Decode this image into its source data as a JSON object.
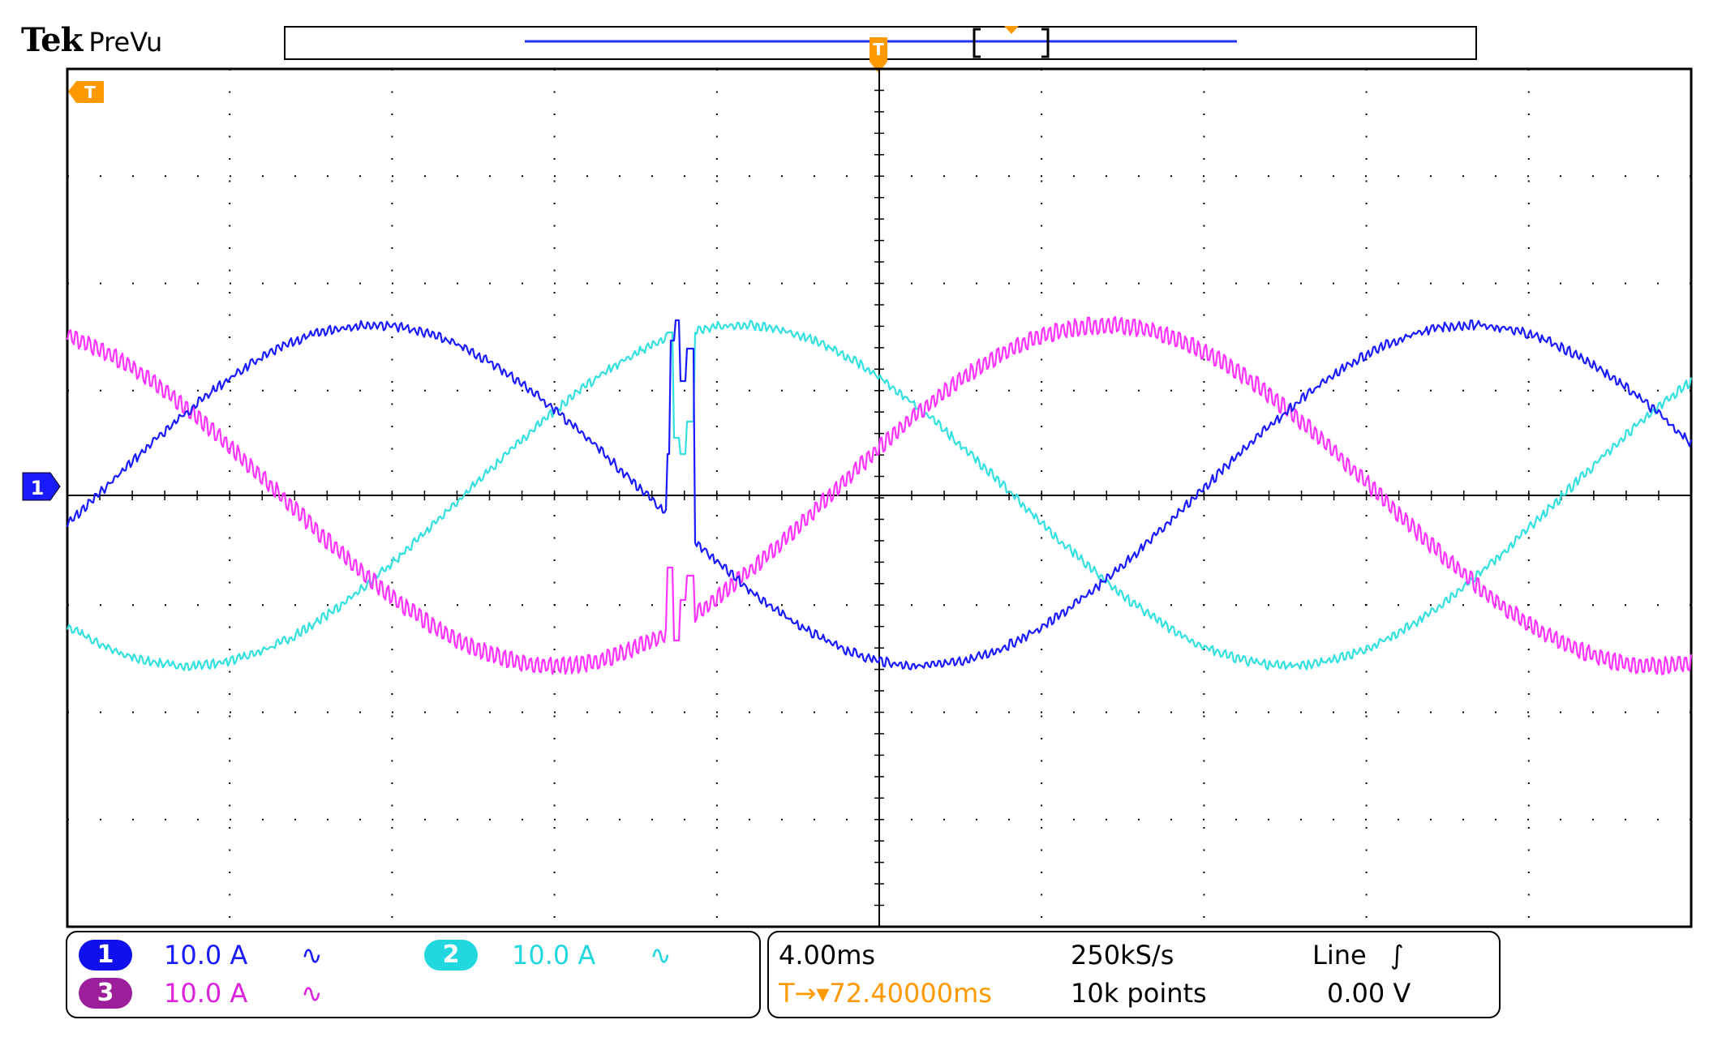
{
  "header": {
    "brand": "Tek",
    "mode": "PreVu",
    "trigger_marker": "T"
  },
  "waveforms": {
    "ch1": {
      "color": "#1a1aff",
      "label": "1"
    },
    "ch2": {
      "color": "#33e0e0"
    },
    "ch3": {
      "color": "#ff33ff"
    }
  },
  "channels": [
    {
      "number": "1",
      "scale": "10.0 A",
      "coupling": "∿",
      "color": "#1a1aff",
      "badge_color": "#1010ee"
    },
    {
      "number": "2",
      "scale": "10.0 A",
      "coupling": "∿",
      "color": "#22d8e0",
      "badge_color": "#22d8e0"
    },
    {
      "number": "3",
      "scale": "10.0 A",
      "coupling": "∿",
      "color": "#dd22dd",
      "badge_color": "#9b1f9b"
    }
  ],
  "timebase": {
    "horizontal_scale": "4.00ms",
    "sample_rate": "250kS/s",
    "record_length": "10k points",
    "trigger_position": "T→▾72.40000ms",
    "trigger_source": "Line",
    "trigger_slope": "∫",
    "trigger_level": "0.00 V"
  },
  "colors": {
    "trigger": "#ff9900",
    "graticule": "#000000",
    "background": "#ffffff"
  }
}
